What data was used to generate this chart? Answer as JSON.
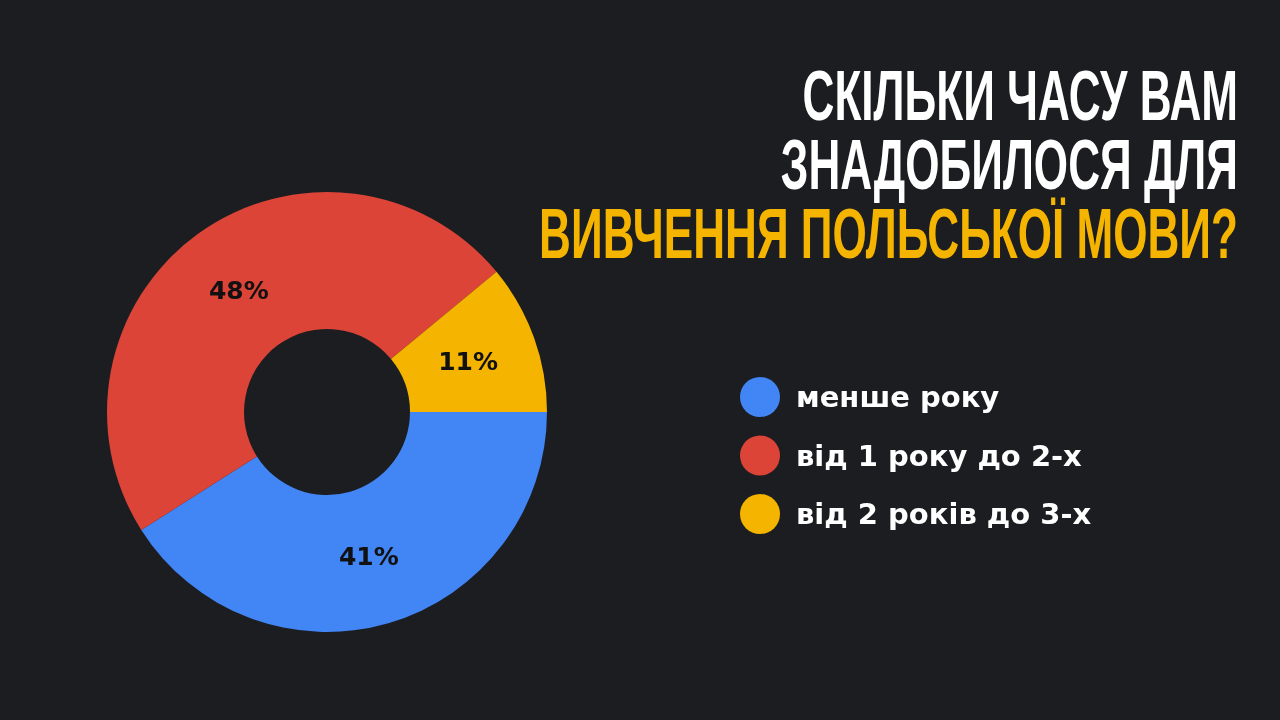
{
  "chart_data": {
    "type": "donut",
    "title": "СКІЛЬКИ ЧАСУ ВАМ\nЗНАДОБИЛОСЯ ДЛЯ\nВИВЧЕННЯ ПОЛЬСЬКОЇ МОВИ?",
    "categories": [
      "менше року",
      "від 1 року до 2-х",
      "від 2 років до 3-х"
    ],
    "values": [
      41,
      48,
      11
    ],
    "colors": [
      "#4285f4",
      "#db4437",
      "#f4b400"
    ],
    "value_labels": [
      "41%",
      "48%",
      "11%"
    ],
    "legend": "right"
  }
}
